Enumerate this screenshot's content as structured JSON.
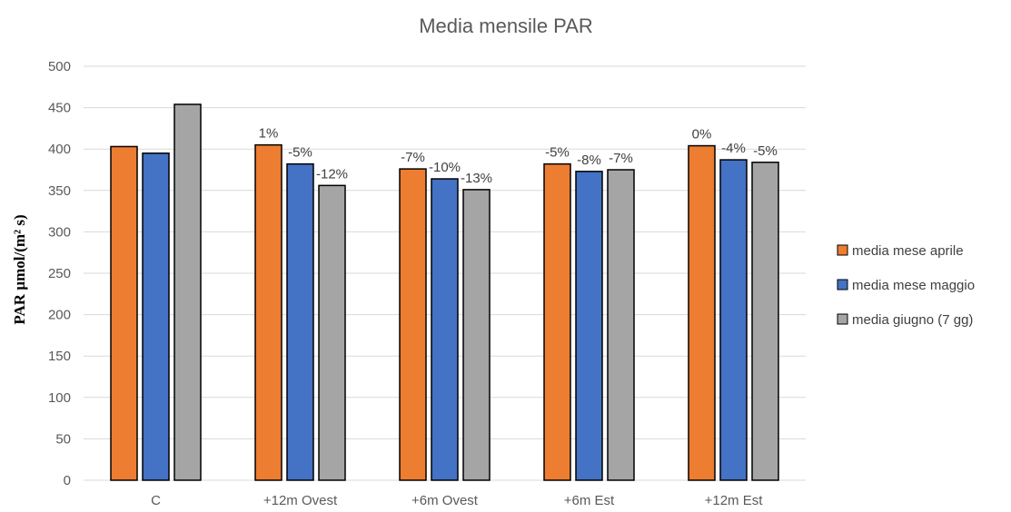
{
  "chart_data": {
    "type": "bar",
    "title": "Media mensile PAR",
    "ylabel": "PAR µmol/(m² s)",
    "xlabel": "",
    "ylim": [
      0,
      500
    ],
    "yticks": [
      0,
      50,
      100,
      150,
      200,
      250,
      300,
      350,
      400,
      450,
      500
    ],
    "grid": true,
    "legend_position": "right",
    "categories": [
      "C",
      "+12m Ovest",
      "+6m Ovest",
      "+6m Est",
      "+12m Est"
    ],
    "series": [
      {
        "name": "media mese aprile",
        "color": "#ed7d31",
        "values": [
          403,
          405,
          376,
          382,
          404
        ],
        "labels": [
          "",
          "1%",
          "-7%",
          "-5%",
          "0%"
        ]
      },
      {
        "name": "media mese maggio",
        "color": "#4472c4",
        "values": [
          395,
          382,
          364,
          373,
          387
        ],
        "labels": [
          "",
          "-5%",
          "-10%",
          "-8%",
          "-4%"
        ]
      },
      {
        "name": "media  giugno (7 gg)",
        "color": "#a5a5a5",
        "values": [
          454,
          356,
          351,
          375,
          384
        ],
        "labels": [
          "",
          "-12%",
          "-13%",
          "-7%",
          "-5%"
        ]
      }
    ]
  }
}
